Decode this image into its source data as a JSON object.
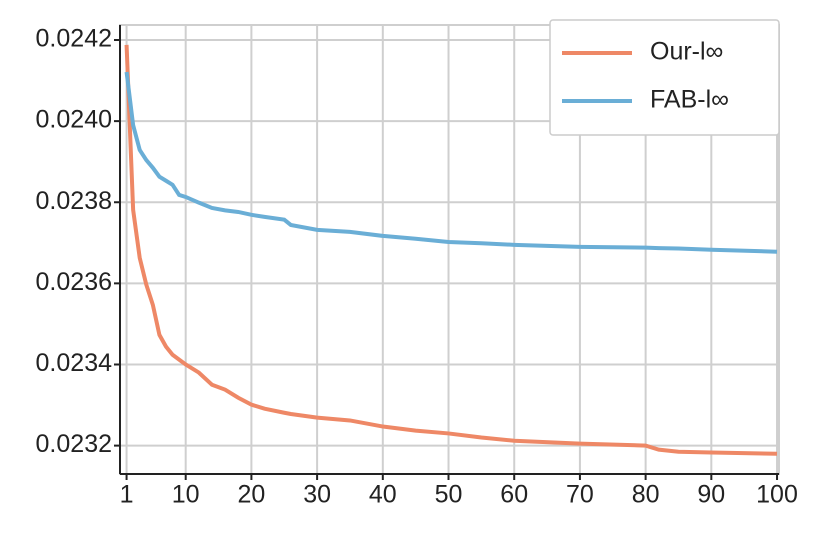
{
  "chart_data": {
    "type": "line",
    "x": [
      1,
      2,
      3,
      4,
      5,
      6,
      7,
      8,
      9,
      10,
      12,
      14,
      16,
      18,
      20,
      22,
      25,
      26,
      30,
      35,
      40,
      45,
      50,
      55,
      60,
      70,
      80,
      82,
      85,
      90,
      100
    ],
    "series": [
      {
        "name": "Our-l∞",
        "color": "#ee8866",
        "values": [
          0.024188,
          0.023781,
          0.023663,
          0.023597,
          0.023547,
          0.023473,
          0.023444,
          0.023424,
          0.023412,
          0.0234,
          0.02338,
          0.02335,
          0.023338,
          0.023318,
          0.023301,
          0.023291,
          0.023281,
          0.023278,
          0.023269,
          0.023262,
          0.023247,
          0.023237,
          0.02323,
          0.02322,
          0.023212,
          0.023205,
          0.0232,
          0.02319,
          0.023185,
          0.023183,
          0.02318
        ]
      },
      {
        "name": "FAB-l∞",
        "color": "#6aaed6",
        "values": [
          0.024121,
          0.02399,
          0.023929,
          0.023904,
          0.023885,
          0.023863,
          0.023853,
          0.023843,
          0.023818,
          0.023813,
          0.023799,
          0.023786,
          0.02378,
          0.023776,
          0.023769,
          0.023764,
          0.023757,
          0.023744,
          0.023732,
          0.023727,
          0.023717,
          0.02371,
          0.023702,
          0.023699,
          0.023695,
          0.02369,
          0.023688,
          0.023687,
          0.023686,
          0.023683,
          0.023678
        ]
      }
    ],
    "xlim": [
      0,
      100.3
    ],
    "xticks": [
      1,
      10,
      20,
      30,
      40,
      50,
      60,
      70,
      80,
      90,
      100
    ],
    "ylim": [
      0.02313,
      0.024237
    ],
    "yticks": [
      {
        "value": 0.0232,
        "label": "0.0232"
      },
      {
        "value": 0.0234,
        "label": "0.0234"
      },
      {
        "value": 0.0236,
        "label": "0.0236"
      },
      {
        "value": 0.0238,
        "label": "0.0238"
      },
      {
        "value": 0.024,
        "label": "0.0240"
      },
      {
        "value": 0.0242,
        "label": "0.0242"
      }
    ],
    "grid": true,
    "legend": "upper right"
  }
}
